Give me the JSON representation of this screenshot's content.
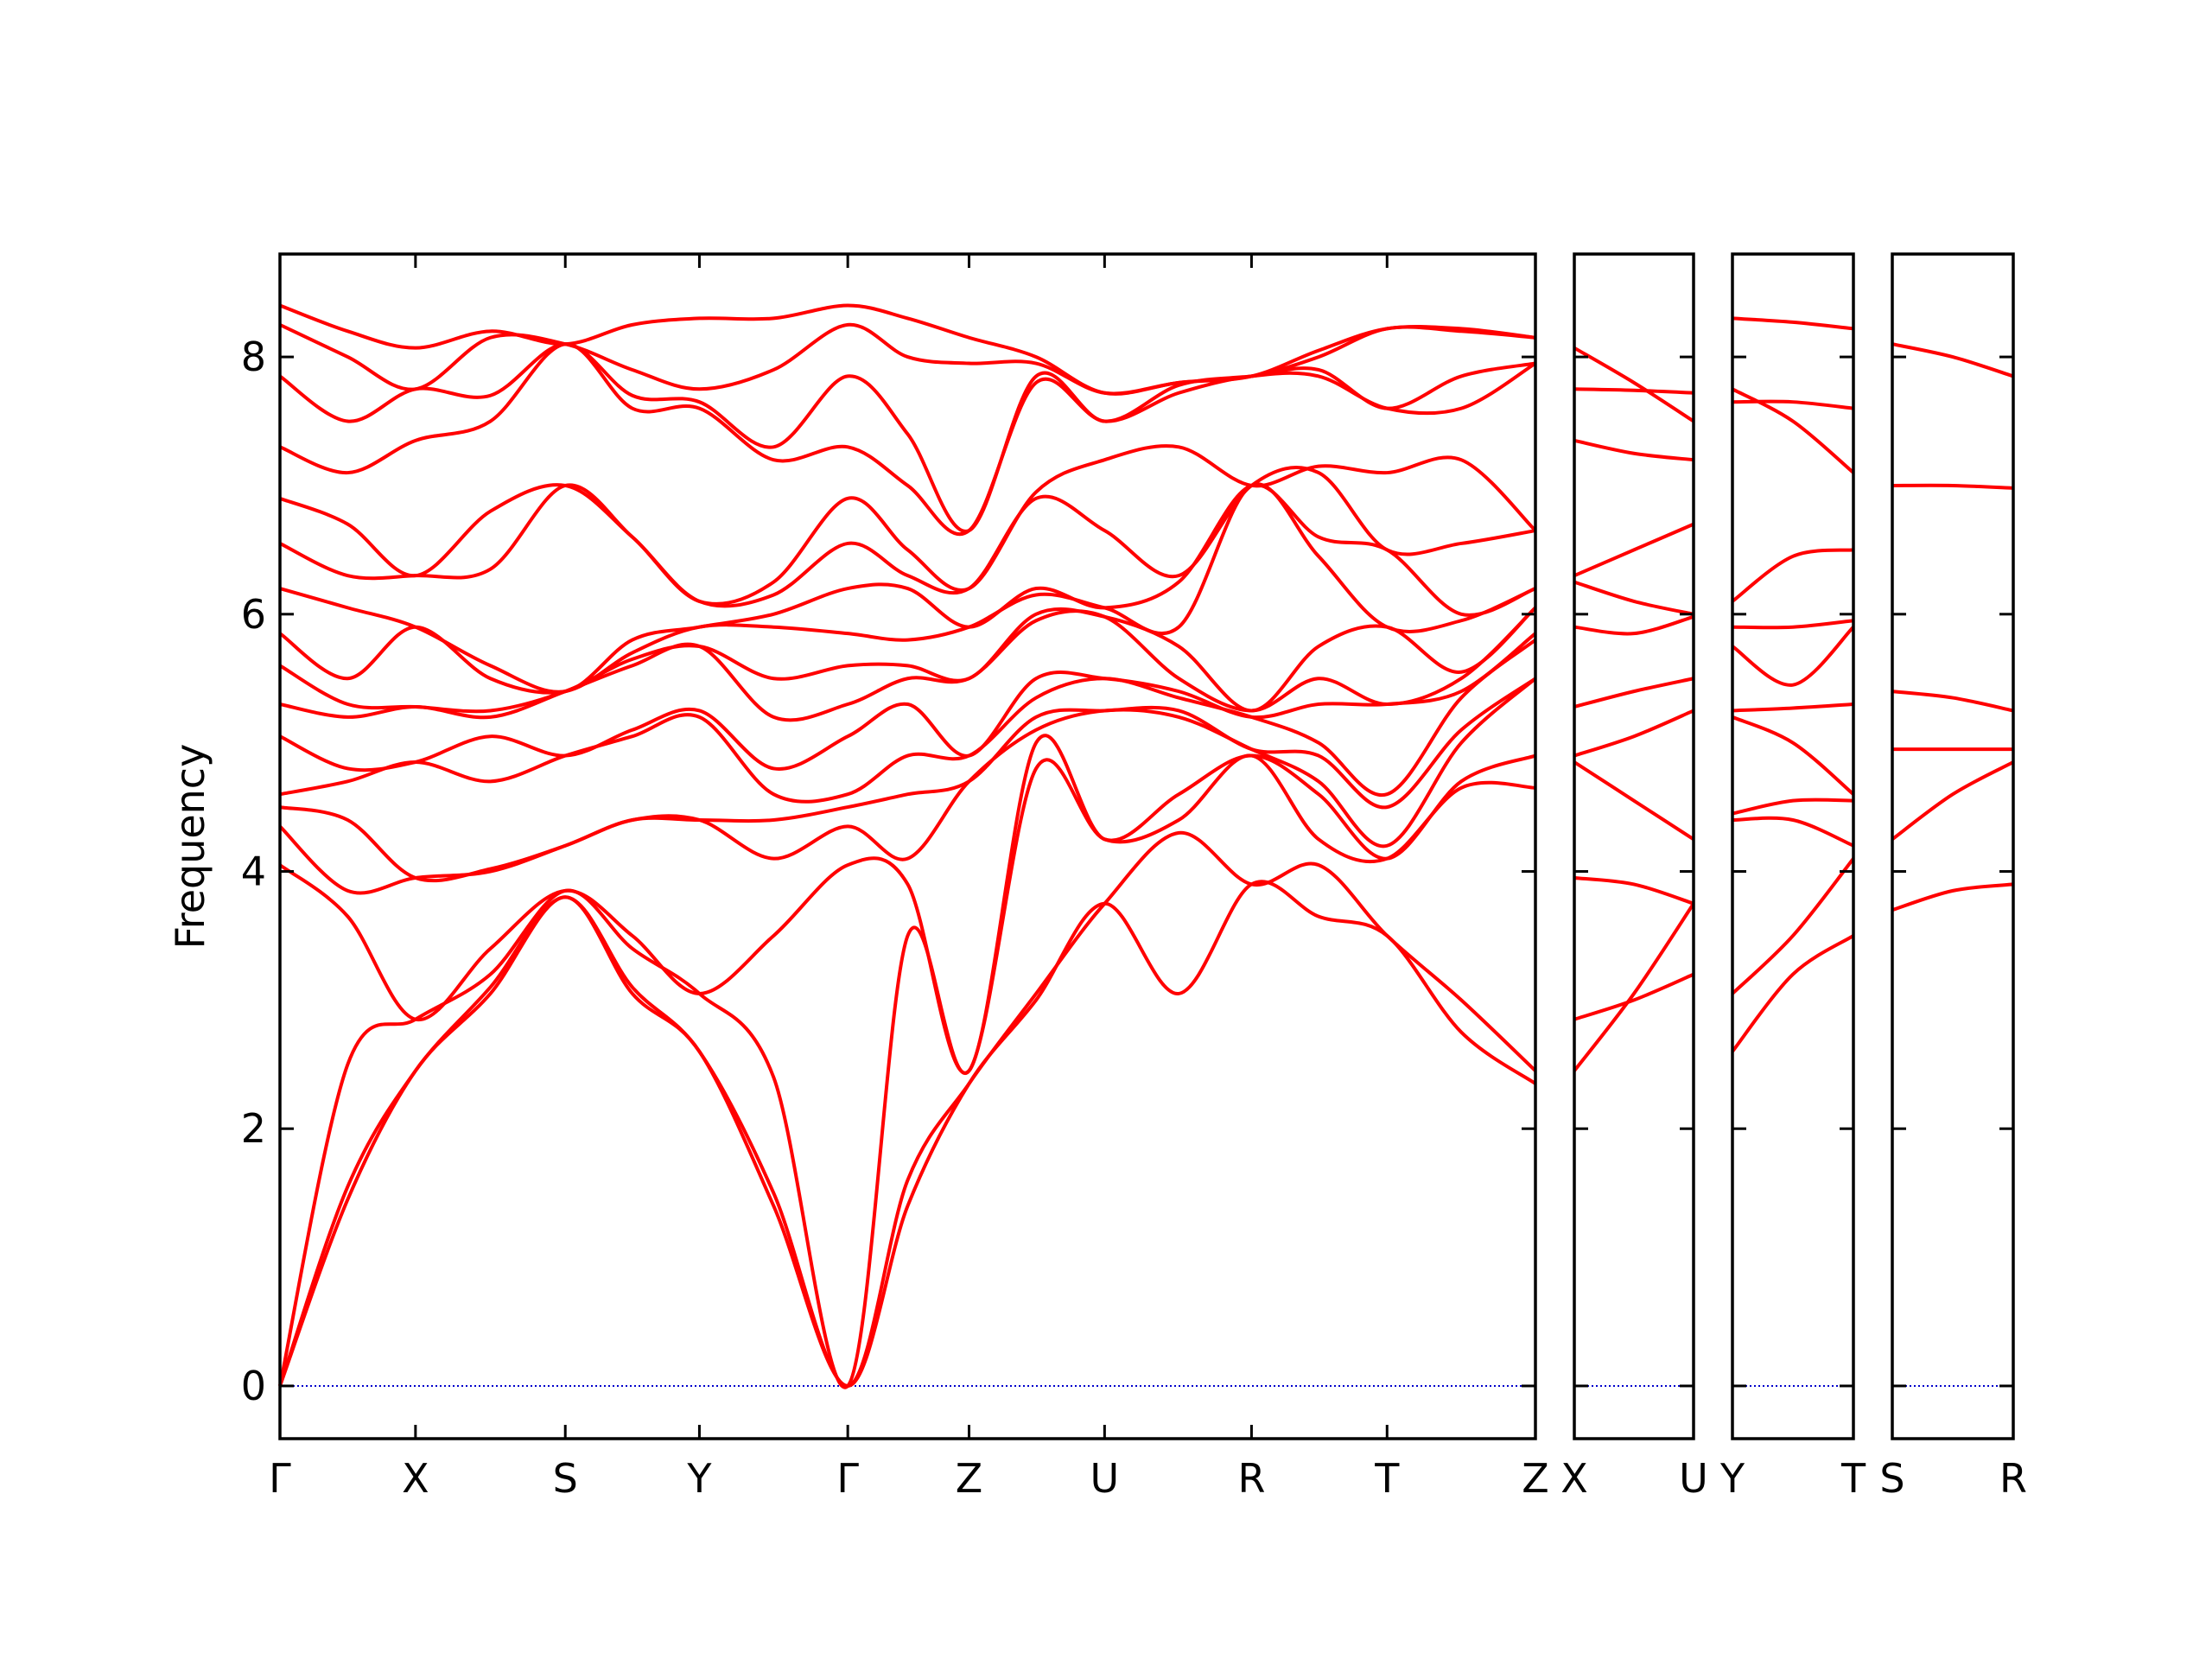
{
  "chart_data": [
    {
      "type": "line",
      "ylabel": "Frequency",
      "color": "#ff0000",
      "hline": 0,
      "hline_color": "#0000cc",
      "x": [
        0,
        0.475,
        0.95,
        1.475,
        2.0,
        2.47,
        2.94,
        3.46,
        3.98,
        4.4,
        4.83,
        5.3,
        5.78,
        6.3,
        6.81,
        7.28,
        7.76,
        8.28,
        8.8
      ],
      "xlim": [
        0,
        8.8
      ],
      "xticks": [
        {
          "value": 0,
          "label": "Γ"
        },
        {
          "value": 0.95,
          "label": "X"
        },
        {
          "value": 2.0,
          "label": "S"
        },
        {
          "value": 2.94,
          "label": "Y"
        },
        {
          "value": 3.98,
          "label": "Γ"
        },
        {
          "value": 4.83,
          "label": "Z"
        },
        {
          "value": 5.78,
          "label": "U"
        },
        {
          "value": 6.81,
          "label": "R"
        },
        {
          "value": 7.76,
          "label": "T"
        },
        {
          "value": 8.8,
          "label": "Z"
        }
      ],
      "ylim": [
        -0.41,
        8.8
      ],
      "yticks": [
        0,
        2,
        4,
        6,
        8
      ],
      "ytick_labels": true,
      "series": [
        {
          "values": [
            0,
            1.45,
            2.45,
            3.05,
            3.8,
            3.05,
            2.6,
            1.4,
            0,
            1.4,
            2.35,
            3.0,
            3.75,
            3.05,
            3.9,
            3.65,
            3.5,
            2.75,
            2.35
          ]
        },
        {
          "values": [
            0,
            1.55,
            2.45,
            3.1,
            3.8,
            3.1,
            2.6,
            1.5,
            0,
            1.6,
            2.35,
            3.05,
            3.75,
            4.3,
            3.9,
            4.05,
            3.5,
            3.0,
            2.45
          ]
        },
        {
          "values": [
            0,
            2.5,
            2.85,
            3.2,
            3.85,
            3.4,
            3.05,
            2.4,
            0,
            3.5,
            2.45,
            4.8,
            4.25,
            4.4,
            4.9,
            4.25,
            4.1,
            4.65,
            4.65
          ]
        },
        {
          "values": [
            4.05,
            3.65,
            2.85,
            3.4,
            3.85,
            3.5,
            3.05,
            3.5,
            4.05,
            3.9,
            2.45,
            5.0,
            4.25,
            4.6,
            4.9,
            4.6,
            4.1,
            4.7,
            4.9
          ]
        },
        {
          "values": [
            4.35,
            3.85,
            3.95,
            4.0,
            4.2,
            4.4,
            4.4,
            4.1,
            4.35,
            4.1,
            4.7,
            5.1,
            5.25,
            5.2,
            4.95,
            4.7,
            4.2,
            5.0,
            5.5
          ]
        },
        {
          "values": [
            4.5,
            4.4,
            3.95,
            4.02,
            4.2,
            4.4,
            4.4,
            4.4,
            4.5,
            4.6,
            4.7,
            5.2,
            5.25,
            5.25,
            4.95,
            4.9,
            4.5,
            5.1,
            5.5
          ]
        },
        {
          "values": [
            4.6,
            4.7,
            4.85,
            4.7,
            4.9,
            5.05,
            5.2,
            4.6,
            4.6,
            4.9,
            4.9,
            5.35,
            5.5,
            5.35,
            5.2,
            5.0,
            4.6,
            5.35,
            5.8
          ]
        },
        {
          "values": [
            5.05,
            4.8,
            4.85,
            5.05,
            4.9,
            5.1,
            5.25,
            4.8,
            5.05,
            5.3,
            4.9,
            5.5,
            5.5,
            5.4,
            5.2,
            5.3,
            5.3,
            5.4,
            5.85
          ]
        },
        {
          "values": [
            5.3,
            5.2,
            5.28,
            5.2,
            5.4,
            5.6,
            5.75,
            5.2,
            5.3,
            5.5,
            5.5,
            5.95,
            5.98,
            5.5,
            5.25,
            5.5,
            5.3,
            5.5,
            6.05
          ]
        },
        {
          "values": [
            5.6,
            5.3,
            5.28,
            5.25,
            5.4,
            5.65,
            5.75,
            5.5,
            5.6,
            5.6,
            5.5,
            6.0,
            5.98,
            5.75,
            5.25,
            5.75,
            5.9,
            5.55,
            6.05
          ]
        },
        {
          "values": [
            5.85,
            5.5,
            5.9,
            5.5,
            5.4,
            5.7,
            5.9,
            5.9,
            5.85,
            5.8,
            5.9,
            6.15,
            6.05,
            5.9,
            7.0,
            6.45,
            5.9,
            5.95,
            6.2
          ]
        },
        {
          "values": [
            6.2,
            6.05,
            5.9,
            5.6,
            5.4,
            5.8,
            5.9,
            6.0,
            6.2,
            6.2,
            5.9,
            6.2,
            6.05,
            6.25,
            7.0,
            6.6,
            6.5,
            6.0,
            6.2
          ]
        },
        {
          "values": [
            6.55,
            6.3,
            6.3,
            6.35,
            7.0,
            6.6,
            6.1,
            6.15,
            6.55,
            6.3,
            6.2,
            6.9,
            6.65,
            6.3,
            7.0,
            7.1,
            6.5,
            6.55,
            6.65
          ]
        },
        {
          "values": [
            6.9,
            6.7,
            6.3,
            6.8,
            7.0,
            6.6,
            6.1,
            6.25,
            6.9,
            6.5,
            6.2,
            6.95,
            7.2,
            7.3,
            7.0,
            7.15,
            7.1,
            7.2,
            6.65
          ]
        },
        {
          "values": [
            7.3,
            7.1,
            7.35,
            7.5,
            8.1,
            7.6,
            7.6,
            7.2,
            7.3,
            7.0,
            6.65,
            7.8,
            7.5,
            7.72,
            7.85,
            7.85,
            7.6,
            7.6,
            7.95
          ]
        },
        {
          "values": [
            7.85,
            7.5,
            7.75,
            7.7,
            8.1,
            7.7,
            7.65,
            7.3,
            7.85,
            7.4,
            6.65,
            7.85,
            7.5,
            7.78,
            7.85,
            7.9,
            7.6,
            7.85,
            7.95
          ]
        },
        {
          "values": [
            8.25,
            8.0,
            7.75,
            8.15,
            8.1,
            7.9,
            7.75,
            7.9,
            8.25,
            8.0,
            7.95,
            7.95,
            7.72,
            7.8,
            7.85,
            8.0,
            8.22,
            8.2,
            8.15
          ]
        },
        {
          "values": [
            8.4,
            8.2,
            8.07,
            8.2,
            8.1,
            8.25,
            8.3,
            8.3,
            8.4,
            8.3,
            8.15,
            8.0,
            7.72,
            7.8,
            7.85,
            8.05,
            8.22,
            8.22,
            8.15
          ]
        }
      ]
    },
    {
      "type": "line",
      "color": "#ff0000",
      "hline": 0,
      "hline_color": "#0000cc",
      "x": [
        0,
        0.42,
        0.84
      ],
      "xlim": [
        0,
        0.84
      ],
      "xticks": [
        {
          "value": 0,
          "label": "X"
        },
        {
          "value": 0.84,
          "label": "U"
        }
      ],
      "ylim": [
        -0.41,
        8.8
      ],
      "yticks": [
        0,
        2,
        4,
        6,
        8
      ],
      "ytick_labels": false,
      "series": [
        {
          "values": [
            8.07,
            7.8,
            7.5
          ]
        },
        {
          "values": [
            7.75,
            7.74,
            7.72
          ]
        },
        {
          "values": [
            7.35,
            7.25,
            7.2
          ]
        },
        {
          "values": [
            6.3,
            6.5,
            6.7
          ]
        },
        {
          "values": [
            6.25,
            6.1,
            6.0
          ]
        },
        {
          "values": [
            5.9,
            5.85,
            5.98
          ]
        },
        {
          "values": [
            5.28,
            5.4,
            5.5
          ]
        },
        {
          "values": [
            4.9,
            5.05,
            5.25
          ]
        },
        {
          "values": [
            4.85,
            4.55,
            4.25
          ]
        },
        {
          "values": [
            3.95,
            3.9,
            3.75
          ]
        },
        {
          "values": [
            2.85,
            3.0,
            3.2
          ]
        },
        {
          "values": [
            2.45,
            3.05,
            3.75
          ]
        }
      ]
    },
    {
      "type": "line",
      "color": "#ff0000",
      "hline": 0,
      "hline_color": "#0000cc",
      "x": [
        0,
        0.42,
        0.84
      ],
      "xlim": [
        0,
        0.84
      ],
      "xticks": [
        {
          "value": 0,
          "label": "Y"
        },
        {
          "value": 0.84,
          "label": "T"
        }
      ],
      "ylim": [
        -0.41,
        8.8
      ],
      "yticks": [
        0,
        2,
        4,
        6,
        8
      ],
      "ytick_labels": false,
      "series": [
        {
          "values": [
            8.3,
            8.27,
            8.22
          ]
        },
        {
          "values": [
            7.75,
            7.5,
            7.1
          ]
        },
        {
          "values": [
            7.65,
            7.65,
            7.6
          ]
        },
        {
          "values": [
            6.1,
            6.45,
            6.5
          ]
        },
        {
          "values": [
            5.9,
            5.9,
            5.95
          ]
        },
        {
          "values": [
            5.75,
            5.45,
            5.9
          ]
        },
        {
          "values": [
            5.25,
            5.27,
            5.3
          ]
        },
        {
          "values": [
            5.2,
            5.0,
            4.6
          ]
        },
        {
          "values": [
            4.4,
            4.4,
            4.2
          ]
        },
        {
          "values": [
            4.45,
            4.55,
            4.55
          ]
        },
        {
          "values": [
            3.05,
            3.5,
            4.1
          ]
        },
        {
          "values": [
            2.6,
            3.2,
            3.5
          ]
        }
      ]
    },
    {
      "type": "line",
      "color": "#ff0000",
      "hline": 0,
      "hline_color": "#0000cc",
      "x": [
        0,
        0.42,
        0.84
      ],
      "xlim": [
        0,
        0.84
      ],
      "xticks": [
        {
          "value": 0,
          "label": "S"
        },
        {
          "value": 0.84,
          "label": "R"
        }
      ],
      "ylim": [
        -0.41,
        8.8
      ],
      "yticks": [
        0,
        2,
        4,
        6,
        8
      ],
      "ytick_labels": false,
      "series": [
        {
          "values": [
            8.1,
            8.0,
            7.85
          ]
        },
        {
          "values": [
            7.0,
            7.0,
            6.98
          ]
        },
        {
          "values": [
            5.4,
            5.35,
            5.25
          ]
        },
        {
          "values": [
            4.95,
            4.95,
            4.95
          ]
        },
        {
          "values": [
            4.25,
            4.6,
            4.85
          ]
        },
        {
          "values": [
            3.7,
            3.85,
            3.9
          ]
        }
      ]
    }
  ]
}
